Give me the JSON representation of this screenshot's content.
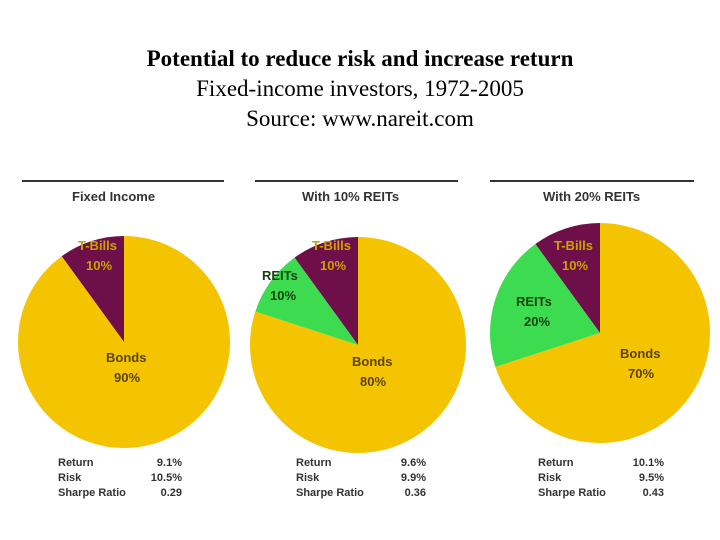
{
  "title": {
    "line1": "Potential to reduce risk and increase return",
    "line2": "Fixed-income investors, 1972-2005",
    "line3": "Source: www.nareit.com"
  },
  "colors": {
    "bonds": "#F5C400",
    "tbills": "#6E0F4A",
    "reits": "#3DDB4F",
    "tbills_label": "#C9A400",
    "bonds_label": "#5a4300",
    "reits_label": "#14420f",
    "rule": "#333333"
  },
  "chart_data": [
    {
      "type": "pie",
      "title": "Fixed Income",
      "slices": [
        {
          "name": "T-Bills",
          "value": 10,
          "label": "10%",
          "color_key": "tbills"
        },
        {
          "name": "Bonds",
          "value": 90,
          "label": "90%",
          "color_key": "bonds"
        }
      ],
      "stats": [
        {
          "label": "Return",
          "value": "9.1%"
        },
        {
          "label": "Risk",
          "value": "10.5%"
        },
        {
          "label": "Sharpe Ratio",
          "value": "0.29"
        }
      ]
    },
    {
      "type": "pie",
      "title": "With 10% REITs",
      "slices": [
        {
          "name": "T-Bills",
          "value": 10,
          "label": "10%",
          "color_key": "tbills"
        },
        {
          "name": "REITs",
          "value": 10,
          "label": "10%",
          "color_key": "reits"
        },
        {
          "name": "Bonds",
          "value": 80,
          "label": "80%",
          "color_key": "bonds"
        }
      ],
      "stats": [
        {
          "label": "Return",
          "value": "9.6%"
        },
        {
          "label": "Risk",
          "value": "9.9%"
        },
        {
          "label": "Sharpe Ratio",
          "value": "0.36"
        }
      ]
    },
    {
      "type": "pie",
      "title": "With 20% REITs",
      "slices": [
        {
          "name": "T-Bills",
          "value": 10,
          "label": "10%",
          "color_key": "tbills"
        },
        {
          "name": "REITs",
          "value": 20,
          "label": "20%",
          "color_key": "reits"
        },
        {
          "name": "Bonds",
          "value": 70,
          "label": "70%",
          "color_key": "bonds"
        }
      ],
      "stats": [
        {
          "label": "Return",
          "value": "10.1%"
        },
        {
          "label": "Risk",
          "value": "9.5%"
        },
        {
          "label": "Sharpe Ratio",
          "value": "0.43"
        }
      ]
    }
  ]
}
